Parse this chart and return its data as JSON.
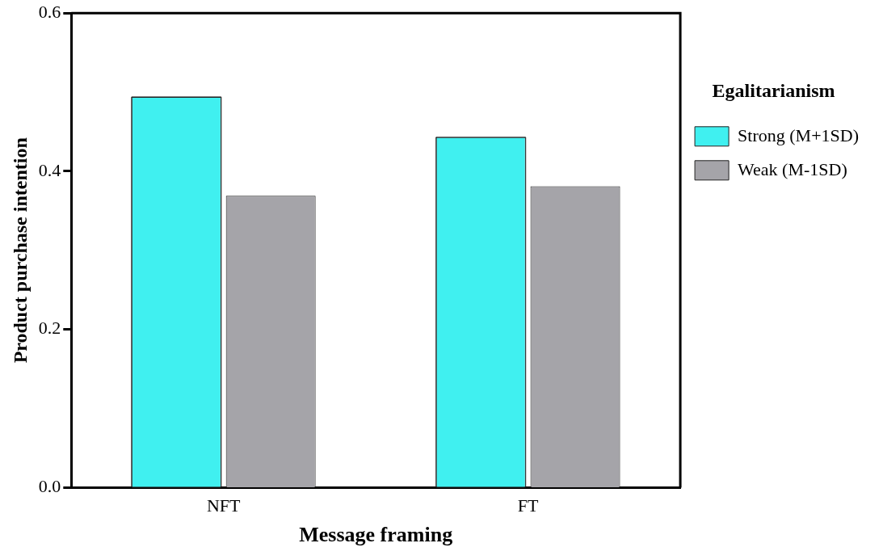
{
  "chart_data": {
    "type": "bar",
    "xlabel": "Message framing",
    "ylabel": "Product purchase intention",
    "legend_title": "Egalitarianism",
    "categories": [
      "NFT",
      "FT"
    ],
    "series": [
      {
        "name": "Strong (M+1SD)",
        "color": "#40f0f0",
        "values": [
          0.494,
          0.443
        ]
      },
      {
        "name": "Weak (M-1SD)",
        "color": "#a5a4a9",
        "values": [
          0.369,
          0.381
        ]
      }
    ],
    "ylim": [
      0,
      0.6
    ],
    "yticks": [
      {
        "value": 0,
        "label": "0.0"
      },
      {
        "value": 0.2,
        "label": "0.2"
      },
      {
        "value": 0.4,
        "label": "0.4"
      },
      {
        "value": 0.6,
        "label": "0.6"
      }
    ],
    "grid": false,
    "legend": "right"
  }
}
